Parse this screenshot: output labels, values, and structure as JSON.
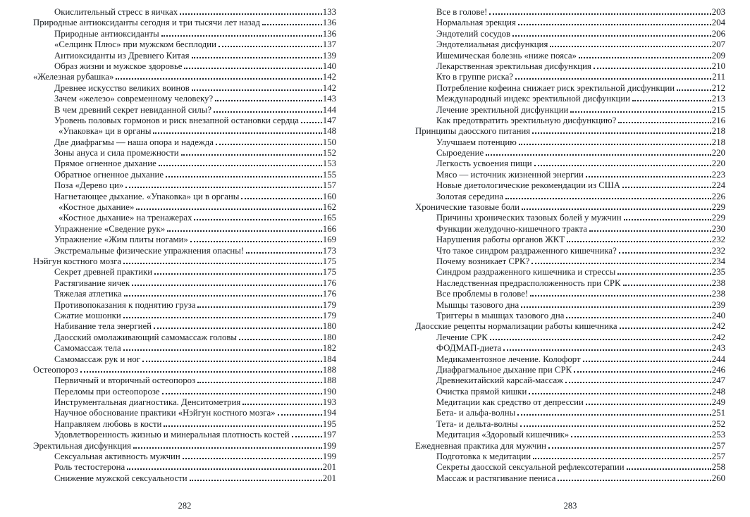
{
  "colors": {
    "text": "#171c21",
    "background": "#ffffff"
  },
  "left_page": {
    "footer_page_number": "282",
    "entries": [
      {
        "title": "Окислительный стресс в яичках",
        "page": "133",
        "level": 1
      },
      {
        "title": "Природные антиоксиданты сегодня и три тысячи лет назад",
        "page": "136",
        "level": 0
      },
      {
        "title": "Природные антиоксиданты",
        "page": "136",
        "level": 1
      },
      {
        "title": "«Селцинк Плюс» при мужском бесплодии",
        "page": "137",
        "level": 1
      },
      {
        "title": "Антиоксиданты из Древнего Китая",
        "page": "139",
        "level": 1
      },
      {
        "title": "Образ жизни и мужское здоровье",
        "page": "140",
        "level": 1
      },
      {
        "title": "«Железная рубашка»",
        "page": "142",
        "level": 0
      },
      {
        "title": "Древнее искусство великих воинов",
        "page": "142",
        "level": 1
      },
      {
        "title": "Зачем «железо» современному человеку?",
        "page": "143",
        "level": 1
      },
      {
        "title": "В чем древний секрет невиданной силы?",
        "page": "144",
        "level": 1
      },
      {
        "title": "Уровень половых гормонов и риск внезапной остановки сердца",
        "page": "147",
        "level": 1
      },
      {
        "title": "«Упаковка» ци в органы",
        "page": "148",
        "level": 2
      },
      {
        "title": "Две диафрагмы — наша опора и надежда",
        "page": "150",
        "level": 1
      },
      {
        "title": "Зоны ануса и сила промежности",
        "page": "152",
        "level": 1
      },
      {
        "title": "Прямое огненное дыхание",
        "page": "153",
        "level": 1
      },
      {
        "title": "Обратное огненное дыхание",
        "page": "155",
        "level": 1
      },
      {
        "title": "Поза «Дерево ци»",
        "page": "157",
        "level": 1
      },
      {
        "title": "Нагнетающее дыхание. «Упаковка» ци в органы",
        "page": "160",
        "level": 1
      },
      {
        "title": "«Костное дыхание»",
        "page": "162",
        "level": 2
      },
      {
        "title": "«Костное дыхание» на тренажерах",
        "page": "165",
        "level": 2
      },
      {
        "title": "Упражнение «Сведение рук»",
        "page": "166",
        "level": 1
      },
      {
        "title": "Упражнение «Жим плиты ногами»",
        "page": "169",
        "level": 1
      },
      {
        "title": "Экстремальные физические упражнения опасны!",
        "page": "173",
        "level": 1
      },
      {
        "title": "Нэйгун костного мозга",
        "page": "175",
        "level": 0
      },
      {
        "title": "Секрет древней практики",
        "page": "175",
        "level": 1
      },
      {
        "title": "Растягивание яичек",
        "page": "176",
        "level": 1
      },
      {
        "title": "Тяжелая атлетика",
        "page": "176",
        "level": 1
      },
      {
        "title": "Противопоказания к поднятию груза",
        "page": "179",
        "level": 1
      },
      {
        "title": "Сжатие мошонки",
        "page": "179",
        "level": 1
      },
      {
        "title": "Набивание тела энергией",
        "page": "180",
        "level": 1
      },
      {
        "title": "Даосский омолаживающий самомассаж головы",
        "page": "180",
        "level": 1
      },
      {
        "title": "Самомассаж тела",
        "page": "182",
        "level": 1
      },
      {
        "title": "Самомассаж рук и ног",
        "page": "184",
        "level": 1
      },
      {
        "title": "Остеопороз",
        "page": "188",
        "level": 0
      },
      {
        "title": "Первичный и вторичный остеопороз",
        "page": "188",
        "level": 1
      },
      {
        "title": "Переломы при остеопорозе",
        "page": "190",
        "level": 1
      },
      {
        "title": "Инструментальная диагностика. Денситометрия",
        "page": "193",
        "level": 1
      },
      {
        "title": "Научное обоснование практики «Нэйгун костного мозга»",
        "page": "194",
        "level": 1
      },
      {
        "title": "Направляем любовь в кости",
        "page": "195",
        "level": 1
      },
      {
        "title": "Удовлетворенность жизнью и минеральная плотность костей",
        "page": "197",
        "level": 1
      },
      {
        "title": "Эректильная дисфункция",
        "page": "199",
        "level": 0
      },
      {
        "title": "Сексуальная активность мужчин",
        "page": "199",
        "level": 1
      },
      {
        "title": "Роль тестостерона",
        "page": "201",
        "level": 1
      },
      {
        "title": "Снижение мужской сексуальности",
        "page": "201",
        "level": 1
      }
    ]
  },
  "right_page": {
    "footer_page_number": "283",
    "entries": [
      {
        "title": "Все в голове!",
        "page": "203",
        "level": 1
      },
      {
        "title": "Нормальная эрекция",
        "page": "204",
        "level": 1
      },
      {
        "title": "Эндотелий сосудов",
        "page": "206",
        "level": 1
      },
      {
        "title": "Эндотелиальная дисфункция",
        "page": "207",
        "level": 1
      },
      {
        "title": "Ишемическая болезнь «ниже пояса»",
        "page": "209",
        "level": 1
      },
      {
        "title": "Лекарственная эректильная дисфункция",
        "page": "210",
        "level": 1
      },
      {
        "title": "Кто в группе риска?",
        "page": "211",
        "level": 1
      },
      {
        "title": "Потребление кофеина снижает риск эректильной дисфункции",
        "page": "212",
        "level": 1
      },
      {
        "title": "Международный индекс эректильной дисфункции",
        "page": "213",
        "level": 1
      },
      {
        "title": "Лечение эректильной дисфункции",
        "page": "215",
        "level": 1
      },
      {
        "title": "Как предотвратить эректильную дисфункцию?",
        "page": "216",
        "level": 1
      },
      {
        "title": "Принципы даосского питания",
        "page": "218",
        "level": 0
      },
      {
        "title": "Улучшаем потенцию",
        "page": "218",
        "level": 1
      },
      {
        "title": "Сыроедение",
        "page": "220",
        "level": 1
      },
      {
        "title": "Легкость усвоения пищи",
        "page": "220",
        "level": 1
      },
      {
        "title": "Мясо — источник жизненной энергии",
        "page": "223",
        "level": 1
      },
      {
        "title": "Новые диетологические рекомендации из США",
        "page": "224",
        "level": 1
      },
      {
        "title": "Золотая середина",
        "page": "226",
        "level": 1
      },
      {
        "title": "Хронические тазовые боли",
        "page": "229",
        "level": 0
      },
      {
        "title": "Причины хронических тазовых болей у мужчин",
        "page": "229",
        "level": 1
      },
      {
        "title": "Функции желудочно-кишечного тракта",
        "page": "230",
        "level": 1
      },
      {
        "title": "Нарушения работы органов ЖКТ",
        "page": "232",
        "level": 1
      },
      {
        "title": "Что такое синдром раздраженного кишечника?",
        "page": "232",
        "level": 1
      },
      {
        "title": "Почему возникает СРК?",
        "page": "234",
        "level": 1
      },
      {
        "title": "Синдром раздраженного кишечника и стрессы",
        "page": "235",
        "level": 1
      },
      {
        "title": "Наследственная предрасположенность при СРК",
        "page": "238",
        "level": 1
      },
      {
        "title": "Все проблемы в голове!",
        "page": "238",
        "level": 1
      },
      {
        "title": "Мышцы тазового дна",
        "page": "239",
        "level": 1
      },
      {
        "title": "Триггеры в мышцах тазового дна",
        "page": "240",
        "level": 1
      },
      {
        "title": "Даосские рецепты нормализации работы кишечника",
        "page": "242",
        "level": 0
      },
      {
        "title": "Лечение СРК",
        "page": "242",
        "level": 1
      },
      {
        "title": "ФОДМАП-диета",
        "page": "243",
        "level": 1
      },
      {
        "title": "Медикаментозное лечение. Колофорт",
        "page": "244",
        "level": 1
      },
      {
        "title": "Диафрагмальное дыхание при СРК",
        "page": "246",
        "level": 1
      },
      {
        "title": "Древнекитайский карсай-массаж",
        "page": "247",
        "level": 1
      },
      {
        "title": "Очистка прямой кишки",
        "page": "248",
        "level": 1
      },
      {
        "title": "Медитации как средство от депрессии",
        "page": "249",
        "level": 1
      },
      {
        "title": "Бета- и альфа-волны",
        "page": "251",
        "level": 1
      },
      {
        "title": "Тета- и дельта-волны",
        "page": "252",
        "level": 1
      },
      {
        "title": "Медитация «Здоровый кишечник»",
        "page": "253",
        "level": 1
      },
      {
        "title": "Ежедневная практика для мужчин",
        "page": "257",
        "level": 0
      },
      {
        "title": "Подготовка к медитации",
        "page": "257",
        "level": 1
      },
      {
        "title": "Секреты даосской сексуальной рефлексотерапии",
        "page": "258",
        "level": 1
      },
      {
        "title": "Массаж и растягивание пениса",
        "page": "260",
        "level": 1
      }
    ]
  }
}
